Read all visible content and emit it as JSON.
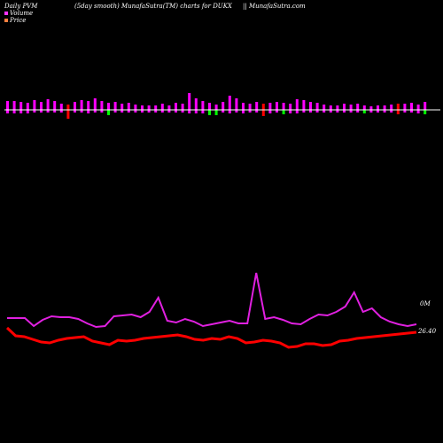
{
  "header": {
    "left": "Daily PVM",
    "middle": "(5day smooth) MunafaSutra(TM) charts for DUKX",
    "right": "|| MunafaSutra.com"
  },
  "legend": [
    {
      "label": "Volume",
      "color": "#ff33ff"
    },
    {
      "label": "Price",
      "color": "#ff8040"
    }
  ],
  "chart_data": {
    "type": "bar+line",
    "colors": {
      "up": "#ff00ff",
      "down": "#00ff00",
      "red_bar": "#ff0000",
      "volume_line": "#e020e0",
      "price_line": "#ff0000",
      "baseline": "#ffffff"
    },
    "pvm_bars": [
      {
        "up": 10,
        "down": 4,
        "c": "up"
      },
      {
        "up": 10,
        "down": 4,
        "c": "up"
      },
      {
        "up": 9,
        "down": 4,
        "c": "up"
      },
      {
        "up": 8,
        "down": 4,
        "c": "up"
      },
      {
        "up": 11,
        "down": 3,
        "c": "up"
      },
      {
        "up": 9,
        "down": 3,
        "c": "up"
      },
      {
        "up": 12,
        "down": 3,
        "c": "up"
      },
      {
        "up": 10,
        "down": 3,
        "c": "up"
      },
      {
        "up": 7,
        "down": 3,
        "c": "up"
      },
      {
        "up": 6,
        "down": 10,
        "c": "red"
      },
      {
        "up": 9,
        "down": 3,
        "c": "up"
      },
      {
        "up": 11,
        "down": 3,
        "c": "up"
      },
      {
        "up": 10,
        "down": 4,
        "c": "up"
      },
      {
        "up": 13,
        "down": 3,
        "c": "up"
      },
      {
        "up": 10,
        "down": 3,
        "c": "up"
      },
      {
        "up": 8,
        "down": 6,
        "c": "down"
      },
      {
        "up": 9,
        "down": 3,
        "c": "up"
      },
      {
        "up": 7,
        "down": 3,
        "c": "up"
      },
      {
        "up": 8,
        "down": 3,
        "c": "up"
      },
      {
        "up": 6,
        "down": 3,
        "c": "up"
      },
      {
        "up": 5,
        "down": 3,
        "c": "up"
      },
      {
        "up": 5,
        "down": 3,
        "c": "up"
      },
      {
        "up": 5,
        "down": 3,
        "c": "up"
      },
      {
        "up": 7,
        "down": 3,
        "c": "up"
      },
      {
        "up": 5,
        "down": 3,
        "c": "up"
      },
      {
        "up": 8,
        "down": 3,
        "c": "up"
      },
      {
        "up": 7,
        "down": 3,
        "c": "up"
      },
      {
        "up": 19,
        "down": 4,
        "c": "up"
      },
      {
        "up": 13,
        "down": 4,
        "c": "up"
      },
      {
        "up": 10,
        "down": 4,
        "c": "up"
      },
      {
        "up": 8,
        "down": 6,
        "c": "down"
      },
      {
        "up": 6,
        "down": 6,
        "c": "down"
      },
      {
        "up": 9,
        "down": 3,
        "c": "up"
      },
      {
        "up": 16,
        "down": 4,
        "c": "up"
      },
      {
        "up": 13,
        "down": 3,
        "c": "up"
      },
      {
        "up": 8,
        "down": 4,
        "c": "up"
      },
      {
        "up": 7,
        "down": 3,
        "c": "up"
      },
      {
        "up": 9,
        "down": 3,
        "c": "up"
      },
      {
        "up": 7,
        "down": 7,
        "c": "red"
      },
      {
        "up": 8,
        "down": 4,
        "c": "up"
      },
      {
        "up": 9,
        "down": 3,
        "c": "up"
      },
      {
        "up": 8,
        "down": 5,
        "c": "down"
      },
      {
        "up": 7,
        "down": 4,
        "c": "up"
      },
      {
        "up": 12,
        "down": 4,
        "c": "up"
      },
      {
        "up": 11,
        "down": 3,
        "c": "up"
      },
      {
        "up": 9,
        "down": 3,
        "c": "up"
      },
      {
        "up": 8,
        "down": 3,
        "c": "up"
      },
      {
        "up": 6,
        "down": 3,
        "c": "up"
      },
      {
        "up": 5,
        "down": 3,
        "c": "up"
      },
      {
        "up": 5,
        "down": 3,
        "c": "up"
      },
      {
        "up": 7,
        "down": 3,
        "c": "up"
      },
      {
        "up": 6,
        "down": 3,
        "c": "up"
      },
      {
        "up": 7,
        "down": 3,
        "c": "up"
      },
      {
        "up": 5,
        "down": 4,
        "c": "down"
      },
      {
        "up": 4,
        "down": 3,
        "c": "up"
      },
      {
        "up": 5,
        "down": 3,
        "c": "up"
      },
      {
        "up": 5,
        "down": 3,
        "c": "up"
      },
      {
        "up": 6,
        "down": 3,
        "c": "up"
      },
      {
        "up": 7,
        "down": 5,
        "c": "red"
      },
      {
        "up": 7,
        "down": 3,
        "c": "up"
      },
      {
        "up": 8,
        "down": 3,
        "c": "up"
      },
      {
        "up": 6,
        "down": 4,
        "c": "up"
      },
      {
        "up": 9,
        "down": 5,
        "c": "down"
      }
    ],
    "volume_line": [
      359,
      359,
      359,
      368,
      361,
      357,
      358,
      358,
      360,
      365,
      369,
      368,
      357,
      356,
      355,
      358,
      352,
      336,
      362,
      364,
      360,
      363,
      368,
      366,
      364,
      362,
      365,
      365,
      308,
      360,
      358,
      361,
      365,
      366,
      360,
      355,
      356,
      352,
      346,
      330,
      352,
      348,
      358,
      363,
      366,
      368,
      366
    ],
    "price_line": [
      370,
      379,
      380,
      383,
      386,
      387,
      384,
      382,
      381,
      380,
      385,
      387,
      389,
      384,
      385,
      384,
      382,
      381,
      380,
      379,
      378,
      380,
      383,
      384,
      382,
      383,
      380,
      382,
      387,
      386,
      384,
      385,
      387,
      392,
      391,
      388,
      388,
      390,
      389,
      385,
      384,
      382,
      381,
      380,
      379,
      378,
      377,
      376,
      375
    ],
    "labels": {
      "volume": "0M",
      "price": "26.40"
    }
  }
}
